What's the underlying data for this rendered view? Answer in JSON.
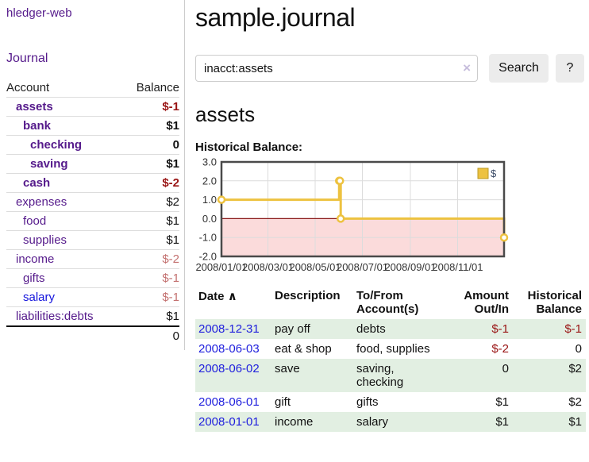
{
  "sidebar": {
    "brand": "hledger-web",
    "journal_link": "Journal",
    "accounts_table": {
      "account_header": "Account",
      "balance_header": "Balance",
      "rows": [
        {
          "account": "assets",
          "balance": "$-1",
          "depth": 1,
          "bold": true,
          "balance_style": "neg-strong",
          "link_style": "purple"
        },
        {
          "account": "bank",
          "balance": "$1",
          "depth": 2,
          "bold": true,
          "balance_style": "normal",
          "link_style": "purple"
        },
        {
          "account": "checking",
          "balance": "0",
          "depth": 3,
          "bold": true,
          "balance_style": "normal",
          "link_style": "purple"
        },
        {
          "account": "saving",
          "balance": "$1",
          "depth": 3,
          "bold": true,
          "balance_style": "normal",
          "link_style": "purple"
        },
        {
          "account": "cash",
          "balance": "$-2",
          "depth": 2,
          "bold": true,
          "balance_style": "neg-strong",
          "link_style": "purple"
        },
        {
          "account": "expenses",
          "balance": "$2",
          "depth": 1,
          "bold": false,
          "balance_style": "normal",
          "link_style": "purple"
        },
        {
          "account": "food",
          "balance": "$1",
          "depth": 2,
          "bold": false,
          "balance_style": "normal",
          "link_style": "purple"
        },
        {
          "account": "supplies",
          "balance": "$1",
          "depth": 2,
          "bold": false,
          "balance_style": "normal",
          "link_style": "purple"
        },
        {
          "account": "income",
          "balance": "$-2",
          "depth": 1,
          "bold": false,
          "balance_style": "neg-muted",
          "link_style": "purple"
        },
        {
          "account": "gifts",
          "balance": "$-1",
          "depth": 2,
          "bold": false,
          "balance_style": "neg-muted",
          "link_style": "purple"
        },
        {
          "account": "salary",
          "balance": "$-1",
          "depth": 2,
          "bold": false,
          "balance_style": "neg-muted",
          "link_style": "blue"
        },
        {
          "account": "liabilities:debts",
          "balance": "$1",
          "depth": 1,
          "bold": false,
          "balance_style": "normal",
          "link_style": "purple"
        }
      ],
      "total": "0"
    }
  },
  "header": {
    "title": "sample.journal"
  },
  "search": {
    "query": "inacct:assets",
    "clear_icon": "×",
    "search_button": "Search",
    "help_button": "?"
  },
  "account_page": {
    "heading": "assets",
    "chart_label": "Historical Balance:"
  },
  "chart_data": {
    "type": "line",
    "line_style": "step",
    "title": "Historical Balance",
    "series": [
      {
        "name": "$",
        "color": "#edc240",
        "points": [
          [
            "2008-01-01",
            1
          ],
          [
            "2008-06-01",
            2
          ],
          [
            "2008-06-02",
            2
          ],
          [
            "2008-06-03",
            0
          ],
          [
            "2008-12-31",
            -1
          ]
        ]
      }
    ],
    "x_ticks": [
      "2008/01/01",
      "2008/03/01",
      "2008/05/01",
      "2008/07/01",
      "2008/09/01",
      "2008/11/01"
    ],
    "y_ticks": [
      "3.0",
      "2.0",
      "1.0",
      "0.0",
      "-1.0",
      "-2.0"
    ],
    "ylim": [
      -2,
      3
    ],
    "x_range": [
      "2008-01-01",
      "2008-12-31"
    ],
    "grid": true,
    "legend_position": "top-right",
    "colors": {
      "negative_region": "#fbdbdb",
      "zero_line": "#8b1a1a",
      "gridline": "#dcdcdc",
      "plot_border": "#4a4a4a",
      "tick_text": "#333333",
      "legend_swatch_border": "#bb9a24"
    }
  },
  "transactions": {
    "headers": {
      "date": "Date",
      "sort_indicator": "∧",
      "description": "Description",
      "accounts": "To/From Account(s)",
      "amount": "Amount Out/In",
      "balance": "Historical Balance"
    },
    "rows": [
      {
        "date": "2008-12-31",
        "description": "pay off",
        "accounts": "debts",
        "amount": "$-1",
        "balance": "$-1",
        "amount_negative": true,
        "balance_negative": true
      },
      {
        "date": "2008-06-03",
        "description": "eat & shop",
        "accounts": "food, supplies",
        "amount": "$-2",
        "balance": "0",
        "amount_negative": true,
        "balance_negative": false
      },
      {
        "date": "2008-06-02",
        "description": "save",
        "accounts": "saving, checking",
        "amount": "0",
        "balance": "$2",
        "amount_negative": false,
        "balance_negative": false
      },
      {
        "date": "2008-06-01",
        "description": "gift",
        "accounts": "gifts",
        "amount": "$1",
        "balance": "$2",
        "amount_negative": false,
        "balance_negative": false
      },
      {
        "date": "2008-01-01",
        "description": "income",
        "accounts": "salary",
        "amount": "$1",
        "balance": "$1",
        "amount_negative": false,
        "balance_negative": false
      }
    ]
  }
}
